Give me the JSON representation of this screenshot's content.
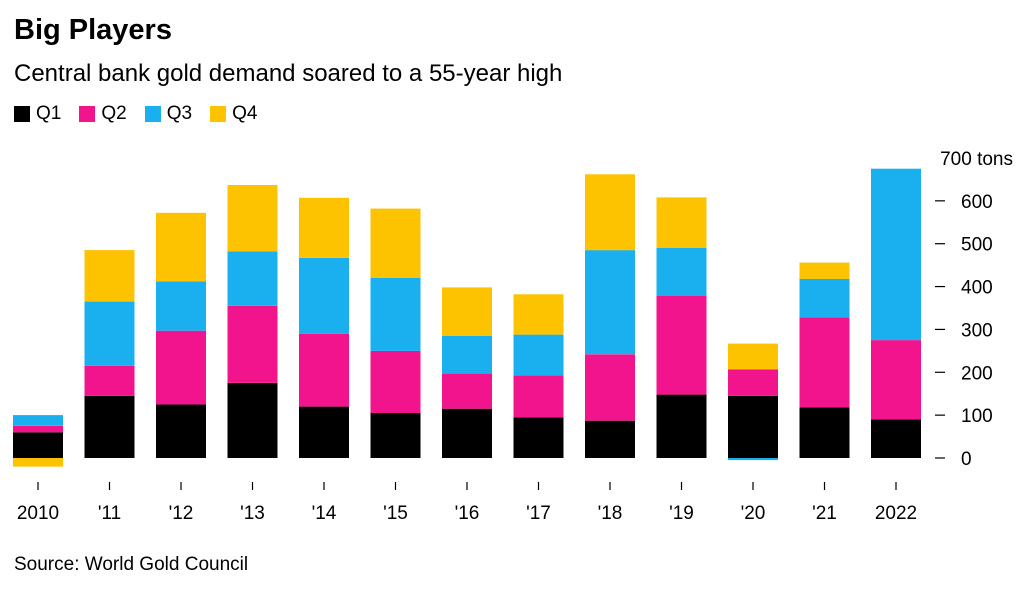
{
  "header": {
    "title": "Big Players",
    "subtitle": "Central bank gold demand soared to a 55-year high"
  },
  "source": "Source: World Gold Council",
  "colors": {
    "Q1": "#000000",
    "Q2": "#f2148c",
    "Q3": "#1ab0f0",
    "Q4": "#fdc300"
  },
  "chart_data": {
    "type": "bar",
    "stacked": true,
    "title": "Big Players",
    "subtitle": "Central bank gold demand soared to a 55-year high",
    "categories": [
      "2010",
      "'11",
      "'12",
      "'13",
      "'14",
      "'15",
      "'16",
      "'17",
      "'18",
      "'19",
      "'20",
      "'21",
      "2022"
    ],
    "series": [
      {
        "name": "Q1",
        "values": [
          60,
          145,
          125,
          175,
          120,
          105,
          115,
          95,
          87,
          148,
          145,
          118,
          90
        ]
      },
      {
        "name": "Q2",
        "values": [
          15,
          70,
          172,
          180,
          170,
          145,
          82,
          98,
          155,
          230,
          62,
          210,
          185
        ]
      },
      {
        "name": "Q3",
        "values": [
          25,
          150,
          115,
          127,
          177,
          170,
          88,
          95,
          243,
          112,
          -5,
          90,
          400
        ]
      },
      {
        "name": "Q4",
        "values": [
          -20,
          120,
          160,
          155,
          140,
          162,
          113,
          94,
          177,
          118,
          60,
          38,
          0
        ]
      }
    ],
    "yunit": "tons",
    "ylim": [
      0,
      700
    ],
    "yticks": [
      0,
      100,
      200,
      300,
      400,
      500,
      600,
      700
    ],
    "ytick_labels": [
      "0",
      "100",
      "200",
      "300",
      "400",
      "500",
      "600",
      "700 tons"
    ],
    "axis_side": "right",
    "legend": "top-left",
    "grid": false
  }
}
